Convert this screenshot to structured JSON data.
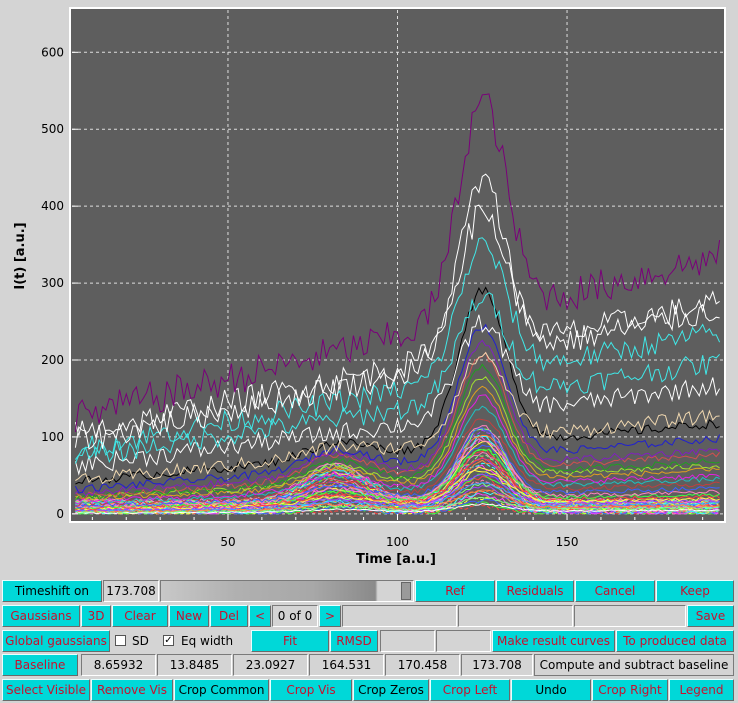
{
  "chart_data": {
    "type": "line",
    "title": "",
    "xlabel": "Time [a.u.]",
    "ylabel": "I(t) [a.u.]",
    "xlim": [
      4,
      196
    ],
    "ylim": [
      -8,
      655
    ],
    "xticks": [
      50,
      100,
      150
    ],
    "yticks": [
      0,
      100,
      200,
      300,
      400,
      500,
      600
    ],
    "grid": true,
    "background": "#5e5e5e",
    "peaks": [
      {
        "center": 82,
        "width": 9
      },
      {
        "center": 125,
        "width": 7
      }
    ],
    "series": [
      {
        "color": "#7a007a",
        "base": 120,
        "slope": 1.1,
        "p1": 0,
        "p2": 280,
        "noise": 45
      },
      {
        "color": "#ffffff",
        "base": 90,
        "slope": 0.9,
        "p1": 0,
        "p2": 230,
        "noise": 35
      },
      {
        "color": "#ffffff",
        "base": 100,
        "slope": 0.9,
        "p1": 0,
        "p2": 180,
        "noise": 35
      },
      {
        "color": "#40e8e8",
        "base": 80,
        "slope": 0.8,
        "p1": 0,
        "p2": 170,
        "noise": 30
      },
      {
        "color": "#40e8e8",
        "base": 70,
        "slope": 0.65,
        "p1": 0,
        "p2": 130,
        "noise": 28
      },
      {
        "color": "#ffffff",
        "base": 60,
        "slope": 0.55,
        "p1": 0,
        "p2": 120,
        "noise": 25
      },
      {
        "color": "#f0d8b0",
        "base": 40,
        "slope": 0.45,
        "p1": 10,
        "p2": 110,
        "noise": 18
      },
      {
        "color": "#000000",
        "base": 40,
        "slope": 0.4,
        "p1": 20,
        "p2": 200,
        "noise": 12
      },
      {
        "color": "#2020d0",
        "base": 30,
        "slope": 0.35,
        "p1": 25,
        "p2": 170,
        "noise": 10
      },
      {
        "color": "#8020c0",
        "base": 25,
        "slope": 0.3,
        "p1": 30,
        "p2": 160,
        "noise": 9
      },
      {
        "color": "#d05050",
        "base": 22,
        "slope": 0.28,
        "p1": 32,
        "p2": 150,
        "noise": 8
      },
      {
        "color": "#20a020",
        "base": 20,
        "slope": 0.25,
        "p1": 28,
        "p2": 140,
        "noise": 8
      },
      {
        "color": "#a0e030",
        "base": 20,
        "slope": 0.22,
        "p1": 25,
        "p2": 130,
        "noise": 7
      },
      {
        "color": "#e0a020",
        "base": 18,
        "slope": 0.2,
        "p1": 24,
        "p2": 120,
        "noise": 7
      },
      {
        "color": "#e020e0",
        "base": 15,
        "slope": 0.18,
        "p1": 22,
        "p2": 115,
        "noise": 7
      },
      {
        "color": "#20c0c0",
        "base": 14,
        "slope": 0.16,
        "p1": 22,
        "p2": 105,
        "noise": 6
      },
      {
        "color": "#c04040",
        "base": 12,
        "slope": 0.14,
        "p1": 20,
        "p2": 95,
        "noise": 6
      },
      {
        "color": "#4060ff",
        "base": 10,
        "slope": 0.12,
        "p1": 18,
        "p2": 85,
        "noise": 6
      },
      {
        "color": "#ff80c0",
        "base": 9,
        "slope": 0.1,
        "p1": 16,
        "p2": 75,
        "noise": 5
      },
      {
        "color": "#40ff40",
        "base": 8,
        "slope": 0.09,
        "p1": 14,
        "p2": 65,
        "noise": 5
      },
      {
        "color": "#ff4040",
        "base": 7,
        "slope": 0.08,
        "p1": 12,
        "p2": 55,
        "noise": 5
      },
      {
        "color": "#ffff40",
        "base": 6,
        "slope": 0.07,
        "p1": 10,
        "p2": 45,
        "noise": 4
      },
      {
        "color": "#a040ff",
        "base": 5,
        "slope": 0.06,
        "p1": 9,
        "p2": 38,
        "noise": 4
      },
      {
        "color": "#40a0ff",
        "base": 4,
        "slope": 0.05,
        "p1": 8,
        "p2": 30,
        "noise": 4
      },
      {
        "color": "#ff8040",
        "base": 3,
        "slope": 0.04,
        "p1": 6,
        "p2": 22,
        "noise": 3
      },
      {
        "color": "#80ff80",
        "base": 2,
        "slope": 0.03,
        "p1": 5,
        "p2": 15,
        "noise": 3
      },
      {
        "color": "#ffffff",
        "base": 1,
        "slope": 0.02,
        "p1": 3,
        "p2": 9,
        "noise": 2
      }
    ]
  },
  "controls": {
    "row1": {
      "timeshift_label": "Timeshift on",
      "timeshift_value": "173.708",
      "ref": "Ref",
      "residuals": "Residuals",
      "cancel": "Cancel",
      "keep": "Keep"
    },
    "row2": {
      "gaussians": "Gaussians",
      "three_d": "3D",
      "clear": "Clear",
      "new": "New",
      "del": "Del",
      "prev": "<",
      "counter": "0 of 0",
      "next": ">",
      "save": "Save"
    },
    "row3": {
      "global_gaussians": "Global gaussians",
      "sd_label": "SD",
      "sd_checked": false,
      "eq_width_label": "Eq width",
      "eq_width_checked": true,
      "fit": "Fit",
      "rmsd": "RMSD",
      "make_result_curves": "Make result curves",
      "to_produced_data": "To produced data"
    },
    "row4": {
      "baseline": "Baseline",
      "values": [
        "8.65932",
        "13.8485",
        "23.0927",
        "164.531",
        "170.458",
        "173.708"
      ],
      "compute": "Compute and subtract baseline"
    },
    "row5": {
      "select_visible": "Select Visible",
      "remove_vis": "Remove Vis",
      "crop_common": "Crop Common",
      "crop_vis": "Crop Vis",
      "crop_zeros": "Crop Zeros",
      "crop_left": "Crop Left",
      "undo": "Undo",
      "crop_right": "Crop Right",
      "legend": "Legend"
    }
  }
}
